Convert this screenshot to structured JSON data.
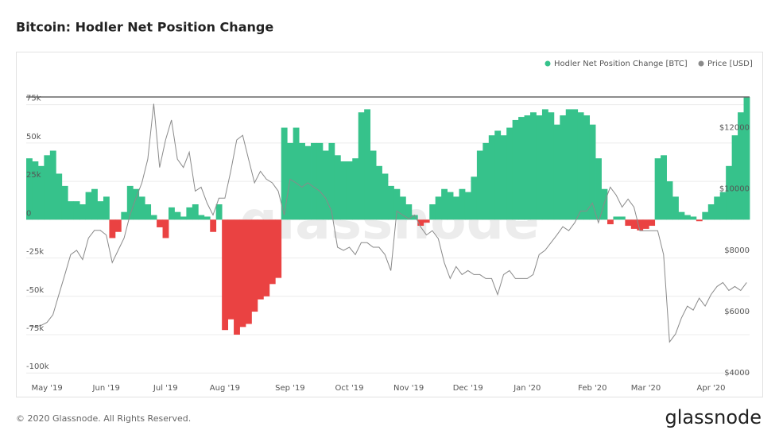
{
  "chart_data": {
    "type": "bar",
    "title": "Bitcoin: Hodler Net Position Change",
    "watermark": "glassnode",
    "footer": "© 2020 Glassnode. All Rights Reserved.",
    "logo": "glassnode",
    "categories": [
      null,
      null,
      null,
      "May '19",
      null,
      null,
      null,
      null,
      null,
      null,
      null,
      null,
      null,
      "Jun '19",
      null,
      null,
      null,
      null,
      null,
      null,
      null,
      null,
      null,
      "Jul '19",
      null,
      null,
      null,
      null,
      null,
      null,
      null,
      null,
      null,
      "Aug '19",
      null,
      null,
      null,
      null,
      null,
      null,
      null,
      null,
      null,
      null,
      "Sep '19",
      null,
      null,
      null,
      null,
      null,
      null,
      null,
      null,
      null,
      "Oct '19",
      null,
      null,
      null,
      null,
      null,
      null,
      null,
      null,
      null,
      "Nov '19",
      null,
      null,
      null,
      null,
      null,
      null,
      null,
      null,
      null,
      "Dec '19",
      null,
      null,
      null,
      null,
      null,
      null,
      null,
      null,
      null,
      "Jan '20",
      null,
      null,
      null,
      null,
      null,
      null,
      null,
      null,
      null,
      null,
      "Feb '20",
      null,
      null,
      null,
      null,
      null,
      null,
      null,
      null,
      "Mar '20",
      null,
      null,
      null,
      null,
      null,
      null,
      null,
      null,
      null,
      null,
      "Apr '20",
      null,
      null,
      null,
      null,
      null,
      null
    ],
    "series": [
      {
        "name": "Hodler Net Position Change [BTC]",
        "color": "#36c28b",
        "negative_color": "#ea4242",
        "values": [
          40000,
          38000,
          35000,
          42000,
          45000,
          30000,
          22000,
          12000,
          12000,
          10000,
          18000,
          20000,
          12000,
          15000,
          -12000,
          -8000,
          5000,
          22000,
          20000,
          15000,
          10000,
          3000,
          -5000,
          -12000,
          8000,
          5000,
          2000,
          8000,
          10000,
          3000,
          2000,
          -8000,
          10000,
          -72000,
          -65000,
          -75000,
          -70000,
          -68000,
          -60000,
          -52000,
          -50000,
          -42000,
          -38000,
          60000,
          50000,
          60000,
          50000,
          48000,
          50000,
          50000,
          45000,
          50000,
          42000,
          38000,
          38000,
          40000,
          70000,
          72000,
          45000,
          35000,
          30000,
          22000,
          20000,
          15000,
          10000,
          3000,
          -4000,
          -2000,
          10000,
          15000,
          20000,
          18000,
          15000,
          20000,
          18000,
          28000,
          45000,
          50000,
          55000,
          58000,
          55000,
          60000,
          65000,
          67000,
          68000,
          70000,
          68000,
          72000,
          70000,
          62000,
          68000,
          72000,
          72000,
          70000,
          68000,
          62000,
          40000,
          20000,
          -3000,
          2000,
          2000,
          -4000,
          -6000,
          -7000,
          -6000,
          -4000,
          40000,
          42000,
          25000,
          15000,
          5000,
          3000,
          2000,
          -1000,
          5000,
          10000,
          15000,
          18000,
          35000,
          55000,
          70000,
          80000
        ]
      },
      {
        "name": "Price [USD]",
        "type": "line",
        "axis": "y2",
        "color": "#8a8a8a",
        "values": [
          5530,
          5500,
          5550,
          5650,
          5900,
          6550,
          7200,
          7860,
          8000,
          7700,
          8400,
          8650,
          8650,
          8500,
          7600,
          8000,
          8400,
          9150,
          9700,
          10200,
          10970,
          12780,
          10700,
          11600,
          12250,
          10970,
          10700,
          11200,
          9930,
          10060,
          9540,
          9150,
          9700,
          9700,
          10580,
          11600,
          11750,
          10970,
          10200,
          10580,
          10320,
          10200,
          9930,
          9150,
          10320,
          10200,
          10060,
          10200,
          10060,
          9930,
          9700,
          9280,
          8100,
          8000,
          8100,
          7860,
          8250,
          8250,
          8100,
          8100,
          7860,
          7340,
          9280,
          9150,
          9030,
          9150,
          8770,
          8500,
          8640,
          8380,
          7600,
          7080,
          7470,
          7210,
          7340,
          7210,
          7210,
          7080,
          7080,
          6560,
          7210,
          7340,
          7080,
          7080,
          7080,
          7210,
          7860,
          8000,
          8250,
          8500,
          8770,
          8640,
          8900,
          9280,
          9280,
          9540,
          8900,
          9540,
          10060,
          9800,
          9410,
          9670,
          9410,
          8640,
          8640,
          8640,
          8640,
          7860,
          5010,
          5270,
          5790,
          6180,
          6050,
          6440,
          6180,
          6560,
          6820,
          6950,
          6690,
          6820,
          6690,
          6950
        ]
      }
    ],
    "ylim": [
      -103000,
      80000
    ],
    "yticks": [
      {
        "value": -100000,
        "label": "-100k"
      },
      {
        "value": -75000,
        "label": "-75k"
      },
      {
        "value": -50000,
        "label": "-50k"
      },
      {
        "value": -25000,
        "label": "-25k"
      },
      0,
      {
        "value": 25000,
        "label": "25k"
      },
      {
        "value": 50000,
        "label": "50k"
      },
      {
        "value": 75000,
        "label": "75k"
      }
    ],
    "y2lim": [
      3850,
      13000
    ],
    "y2ticks": [
      {
        "value": 4000,
        "label": "$4000"
      },
      {
        "value": 6000,
        "label": "$6000"
      },
      {
        "value": 8000,
        "label": "$8000"
      },
      {
        "value": 10000,
        "label": "$10000"
      },
      {
        "value": 12000,
        "label": "$12000"
      }
    ],
    "grid": true
  }
}
